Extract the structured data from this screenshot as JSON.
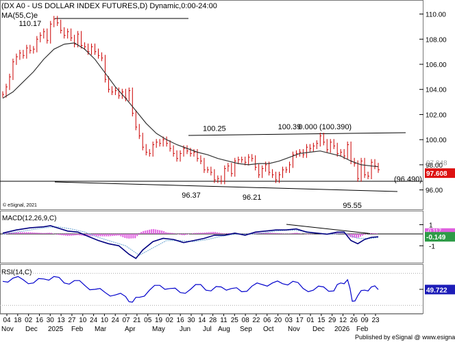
{
  "header": {
    "title": "(DX A0 - US DOLLAR INDEX FUTURES,D) Dynamic,0:00-24:00",
    "ma_label": "MA(55,C)e",
    "copyright": "© eSignal, 2021"
  },
  "footer": {
    "publisher": "Published by eSignal @ www.esignal.com"
  },
  "colors": {
    "price_bar": "#cc0000",
    "moving_average": "#333333",
    "macd": "#000080",
    "macd_signal": "#7fb2d8",
    "histogram": "#e060e0",
    "rsi": "#0000cc",
    "current_price_box": "#dd1111",
    "macd_value_box": "#2e9b47",
    "rsi_value_box": "#1d1db8"
  },
  "chart_data": [
    {
      "type": "line",
      "panel": "price",
      "y_ticks": [
        "110.00",
        "108.00",
        "106.00",
        "104.00",
        "102.00",
        "100.00",
        "98.00",
        "96.00"
      ],
      "ylim": [
        95.0,
        110.9
      ],
      "x_ticks": [
        "04",
        "18",
        "02",
        "16",
        "30",
        "13",
        "27",
        "10",
        "24",
        "10",
        "24",
        "07",
        "21",
        "05",
        "19",
        "02",
        "16",
        "30",
        "14",
        "28",
        "11",
        "25",
        "08",
        "22",
        "06",
        "20",
        "03",
        "17",
        "01",
        "15",
        "29",
        "12",
        "26",
        "09",
        "23"
      ],
      "month_labels": [
        "Nov",
        "Dec",
        "2025",
        "Feb",
        "Mar",
        "Apr",
        "May",
        "Jun",
        "Jul",
        "Aug",
        "Sep",
        "Oct",
        "Nov",
        "Dec",
        "2026",
        "Feb"
      ],
      "series": [
        {
          "name": "DX A0",
          "x": [
            0,
            5,
            10,
            15,
            20,
            25,
            30,
            35,
            40,
            45,
            50,
            55,
            60,
            65,
            70,
            75,
            80,
            85,
            90,
            95,
            100,
            105,
            110,
            115,
            120,
            125,
            130,
            135,
            140,
            145,
            150,
            155,
            160,
            165,
            170,
            175,
            180,
            185,
            190,
            195,
            200,
            205,
            210,
            215,
            220,
            225,
            230,
            235,
            240,
            245,
            250,
            255,
            260,
            265,
            270,
            275,
            280,
            285,
            290,
            295,
            300,
            305,
            310,
            315,
            320,
            325,
            330,
            335,
            340,
            345,
            350,
            355,
            360,
            365,
            370,
            375,
            380,
            385,
            390,
            395,
            400,
            405,
            410,
            415,
            420,
            425,
            430,
            435,
            440,
            445,
            450,
            455,
            460,
            465,
            470,
            475,
            480,
            485,
            490,
            495,
            500,
            505,
            510,
            515,
            520,
            525,
            530,
            535,
            540,
            545,
            550
          ],
          "values": [
            103.6,
            104.2,
            105.0,
            106.2,
            106.6,
            106.9,
            106.7,
            107.3,
            107.1,
            107.2,
            108.0,
            108.3,
            108.6,
            107.9,
            109.2,
            109.6,
            109.3,
            108.7,
            108.3,
            108.6,
            108.1,
            107.6,
            108.4,
            107.5,
            107.4,
            107.0,
            107.4,
            107.0,
            106.7,
            106.5,
            104.8,
            104.0,
            103.8,
            103.9,
            103.5,
            103.8,
            103.3,
            103.9,
            102.1,
            101.0,
            100.3,
            99.4,
            99.0,
            98.9,
            99.6,
            99.8,
            99.7,
            100.0,
            99.7,
            99.3,
            98.9,
            98.5,
            98.9,
            99.3,
            99.1,
            98.9,
            99.0,
            98.5,
            98.3,
            97.6,
            97.6,
            97.4,
            96.8,
            96.9,
            96.7,
            97.7,
            97.9,
            97.3,
            98.3,
            98.4,
            98.4,
            98.2,
            98.6,
            98.5,
            97.8,
            97.2,
            97.7,
            98.0,
            97.4,
            97.2,
            96.8,
            97.2,
            97.6,
            97.6,
            98.0,
            98.8,
            98.9,
            99.0,
            98.8,
            99.4,
            99.3,
            99.5,
            99.7,
            100.3,
            99.8,
            99.2,
            99.8,
            99.5,
            98.9,
            99.0,
            98.7,
            99.6,
            98.3,
            98.1,
            96.9,
            98.3,
            97.2,
            97.1,
            98.2,
            97.9,
            97.608
          ]
        },
        {
          "name": "MA(55,C)e",
          "x": [
            0,
            15,
            30,
            45,
            60,
            75,
            90,
            105,
            120,
            135,
            150,
            165,
            180,
            195,
            210,
            225,
            240,
            255,
            270,
            285,
            300,
            315,
            330,
            345,
            360,
            375,
            390,
            405,
            420,
            435,
            450,
            465,
            480,
            495,
            510,
            525,
            540,
            550
          ],
          "values": [
            103.3,
            103.8,
            104.6,
            105.4,
            106.4,
            107.2,
            107.6,
            107.7,
            107.2,
            106.4,
            105.3,
            104.2,
            103.3,
            102.3,
            101.3,
            100.5,
            100.0,
            99.6,
            99.3,
            99.0,
            98.8,
            98.5,
            98.3,
            98.1,
            98.0,
            98.1,
            98.1,
            98.3,
            98.6,
            98.9,
            99.0,
            99.1,
            98.9,
            98.7,
            98.3,
            98.0,
            97.9,
            97.85
          ]
        }
      ],
      "annotations": [
        {
          "text": "110.17",
          "x": 77,
          "y": 110.17
        },
        {
          "text": "100.25",
          "x": 310,
          "y": 100.25
        },
        {
          "text": "100.39",
          "x": 420,
          "y": 100.39
        },
        {
          "text": "0.000 (100.390)",
          "x": 480,
          "y": 100.39
        },
        {
          "text": "96.37",
          "x": 276,
          "y": 96.37
        },
        {
          "text": "96.21",
          "x": 365,
          "y": 96.21
        },
        {
          "text": "95.55",
          "x": 512,
          "y": 95.55
        },
        {
          "text": "(96.490)",
          "x": 590,
          "y": 96.49
        }
      ],
      "current_price": "97.608",
      "ma_value_label": "97.848"
    },
    {
      "type": "line",
      "panel": "macd",
      "title": "MACD(12,26,9,C)",
      "y_ticks": [
        "1",
        "-1"
      ],
      "ylim": [
        -2.6,
        2.2
      ],
      "series": [
        {
          "name": "MACD",
          "x": [
            0,
            20,
            40,
            60,
            70,
            80,
            95,
            110,
            125,
            140,
            155,
            170,
            185,
            195,
            205,
            220,
            235,
            250,
            265,
            280,
            295,
            310,
            325,
            340,
            355,
            370,
            385,
            400,
            415,
            430,
            445,
            460,
            475,
            490,
            500,
            510,
            520,
            530,
            540,
            550
          ],
          "values": [
            0.2,
            0.5,
            0.7,
            0.8,
            0.9,
            0.7,
            0.4,
            0.3,
            -0.1,
            -0.5,
            -0.8,
            -1.0,
            -1.8,
            -2.2,
            -1.4,
            -0.6,
            -0.3,
            -0.4,
            -0.7,
            -0.5,
            -0.3,
            0.0,
            0.0,
            0.2,
            0.0,
            0.3,
            0.4,
            0.5,
            0.5,
            0.6,
            0.3,
            0.2,
            0.1,
            0.3,
            0.3,
            -0.5,
            -0.8,
            -0.4,
            -0.2,
            -0.149
          ]
        },
        {
          "name": "Signal",
          "x": [
            0,
            20,
            40,
            60,
            80,
            100,
            120,
            140,
            160,
            180,
            200,
            220,
            240,
            260,
            280,
            300,
            320,
            340,
            360,
            380,
            400,
            420,
            440,
            460,
            480,
            500,
            520,
            540,
            550
          ],
          "values": [
            0.1,
            0.3,
            0.5,
            0.7,
            0.8,
            0.6,
            0.3,
            -0.2,
            -0.6,
            -1.0,
            -1.9,
            -1.2,
            -0.5,
            -0.5,
            -0.6,
            -0.4,
            -0.1,
            0.1,
            0.1,
            0.2,
            0.4,
            0.5,
            0.4,
            0.2,
            0.1,
            0.2,
            -0.3,
            -0.3,
            -0.2
          ]
        }
      ],
      "current_value": "-0.149",
      "secondary_value": "-0.117"
    },
    {
      "type": "line",
      "panel": "rsi",
      "title": "RSI(14,C)",
      "y_ticks": [
        "50"
      ],
      "ylim": [
        20,
        80
      ],
      "series": [
        {
          "name": "RSI(14,C)",
          "x": [
            0,
            15,
            30,
            45,
            60,
            75,
            90,
            105,
            120,
            135,
            150,
            165,
            180,
            190,
            200,
            215,
            230,
            245,
            260,
            275,
            290,
            305,
            320,
            335,
            350,
            365,
            380,
            395,
            410,
            425,
            440,
            455,
            470,
            485,
            495,
            505,
            512,
            520,
            530,
            540,
            550
          ],
          "values": [
            60,
            64,
            62,
            58,
            63,
            66,
            58,
            61,
            55,
            50,
            46,
            43,
            41,
            34,
            40,
            49,
            55,
            51,
            46,
            50,
            56,
            48,
            53,
            51,
            47,
            54,
            56,
            58,
            57,
            60,
            51,
            49,
            53,
            48,
            58,
            62,
            35,
            42,
            49,
            53,
            49.722
          ]
        }
      ],
      "current_value": "49.722"
    }
  ]
}
